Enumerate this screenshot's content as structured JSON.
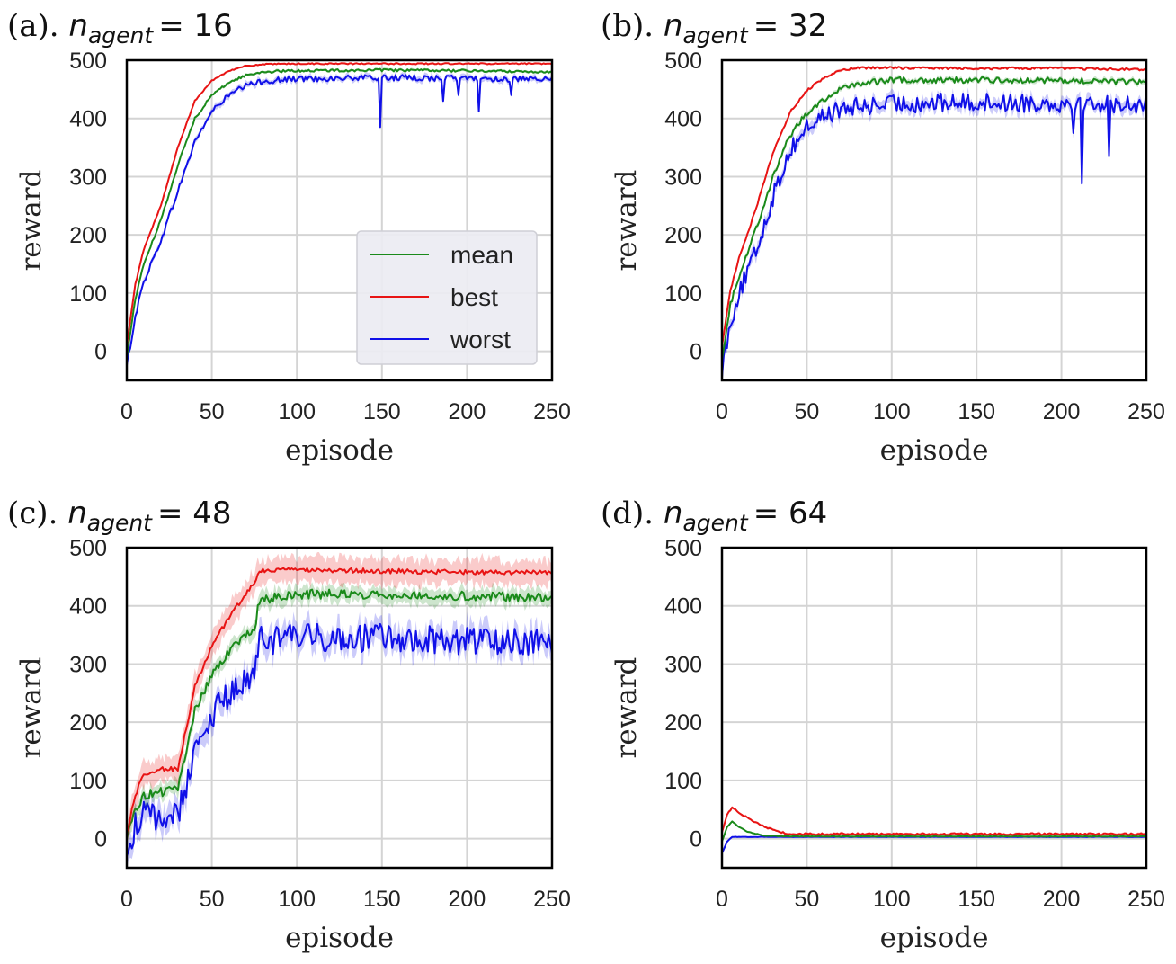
{
  "figure": {
    "colors": {
      "mean": "#1a8a1a",
      "best": "#e81414",
      "worst": "#1010e8",
      "grid": "#d4d4d4",
      "frame": "#000000"
    }
  },
  "chart_data": [
    {
      "type": "line",
      "panel_label": "(a).",
      "title_var": "n",
      "title_sub": "agent",
      "title_eq": "= 16",
      "xlabel": "episode",
      "ylabel": "reward",
      "xlim": [
        0,
        250
      ],
      "ylim": [
        -50,
        500
      ],
      "xticks": [
        0,
        50,
        100,
        150,
        200,
        250
      ],
      "yticks": [
        0,
        100,
        200,
        300,
        400,
        500
      ],
      "grid": true,
      "legend": {
        "placement": "center-right",
        "entries": [
          "mean",
          "best",
          "worst"
        ]
      },
      "series": [
        {
          "name": "mean",
          "points": [
            [
              0,
              -10
            ],
            [
              5,
              90
            ],
            [
              10,
              150
            ],
            [
              20,
              225
            ],
            [
              30,
              320
            ],
            [
              40,
              400
            ],
            [
              50,
              440
            ],
            [
              60,
              462
            ],
            [
              70,
              474
            ],
            [
              80,
              480
            ],
            [
              100,
              482
            ],
            [
              150,
              483
            ],
            [
              200,
              482
            ],
            [
              250,
              480
            ]
          ],
          "noise": 2,
          "band": 3
        },
        {
          "name": "best",
          "points": [
            [
              0,
              10
            ],
            [
              5,
              115
            ],
            [
              10,
              175
            ],
            [
              20,
              250
            ],
            [
              30,
              350
            ],
            [
              40,
              430
            ],
            [
              50,
              465
            ],
            [
              60,
              482
            ],
            [
              70,
              490
            ],
            [
              80,
              493
            ],
            [
              100,
              494
            ],
            [
              150,
              494
            ],
            [
              200,
              494
            ],
            [
              250,
              494
            ]
          ],
          "noise": 1,
          "band": 2
        },
        {
          "name": "worst",
          "points": [
            [
              0,
              -25
            ],
            [
              5,
              60
            ],
            [
              10,
              120
            ],
            [
              20,
              190
            ],
            [
              30,
              275
            ],
            [
              40,
              360
            ],
            [
              50,
              412
            ],
            [
              60,
              440
            ],
            [
              70,
              456
            ],
            [
              80,
              464
            ],
            [
              100,
              468
            ],
            [
              150,
              470
            ],
            [
              200,
              469
            ],
            [
              250,
              466
            ]
          ],
          "noise": 5,
          "band": 7,
          "dips": [
            [
              149,
              385
            ],
            [
              186,
              430
            ],
            [
              195,
              440
            ],
            [
              207,
              412
            ],
            [
              226,
              440
            ]
          ]
        }
      ]
    },
    {
      "type": "line",
      "panel_label": "(b).",
      "title_var": "n",
      "title_sub": "agent",
      "title_eq": "= 32",
      "xlabel": "episode",
      "ylabel": "reward",
      "xlim": [
        0,
        250
      ],
      "ylim": [
        -50,
        500
      ],
      "xticks": [
        0,
        50,
        100,
        150,
        200,
        250
      ],
      "yticks": [
        0,
        100,
        200,
        300,
        400,
        500
      ],
      "grid": true,
      "series": [
        {
          "name": "mean",
          "points": [
            [
              0,
              -10
            ],
            [
              5,
              80
            ],
            [
              10,
              130
            ],
            [
              20,
              210
            ],
            [
              30,
              300
            ],
            [
              40,
              370
            ],
            [
              50,
              410
            ],
            [
              60,
              433
            ],
            [
              70,
              450
            ],
            [
              80,
              460
            ],
            [
              100,
              466
            ],
            [
              150,
              466
            ],
            [
              200,
              465
            ],
            [
              250,
              462
            ]
          ],
          "noise": 5,
          "band": 6
        },
        {
          "name": "best",
          "points": [
            [
              0,
              10
            ],
            [
              5,
              105
            ],
            [
              10,
              160
            ],
            [
              20,
              245
            ],
            [
              30,
              340
            ],
            [
              40,
              410
            ],
            [
              50,
              448
            ],
            [
              60,
              470
            ],
            [
              70,
              482
            ],
            [
              80,
              487
            ],
            [
              100,
              487
            ],
            [
              150,
              486
            ],
            [
              200,
              486
            ],
            [
              250,
              484
            ]
          ],
          "noise": 2,
          "band": 3
        },
        {
          "name": "worst",
          "points": [
            [
              0,
              -30
            ],
            [
              5,
              50
            ],
            [
              10,
              100
            ],
            [
              20,
              170
            ],
            [
              30,
              265
            ],
            [
              40,
              345
            ],
            [
              50,
              385
            ],
            [
              60,
              405
            ],
            [
              70,
              415
            ],
            [
              80,
              420
            ],
            [
              100,
              425
            ],
            [
              150,
              428
            ],
            [
              200,
              426
            ],
            [
              250,
              425
            ]
          ],
          "noise": 16,
          "band": 14,
          "dips": [
            [
              212,
              288
            ],
            [
              207,
              375
            ],
            [
              228,
              335
            ]
          ]
        }
      ]
    },
    {
      "type": "line",
      "panel_label": "(c).",
      "title_var": "n",
      "title_sub": "agent",
      "title_eq": "= 48",
      "xlabel": "episode",
      "ylabel": "reward",
      "xlim": [
        0,
        250
      ],
      "ylim": [
        -50,
        500
      ],
      "xticks": [
        0,
        50,
        100,
        150,
        200,
        250
      ],
      "yticks": [
        0,
        100,
        200,
        300,
        400,
        500
      ],
      "grid": true,
      "series": [
        {
          "name": "mean",
          "points": [
            [
              0,
              0
            ],
            [
              5,
              50
            ],
            [
              10,
              75
            ],
            [
              20,
              80
            ],
            [
              30,
              85
            ],
            [
              40,
              220
            ],
            [
              50,
              280
            ],
            [
              60,
              320
            ],
            [
              70,
              350
            ],
            [
              75,
              360
            ],
            [
              78,
              410
            ],
            [
              100,
              420
            ],
            [
              150,
              420
            ],
            [
              200,
              417
            ],
            [
              250,
              415
            ]
          ],
          "noise": 8,
          "band": 18
        },
        {
          "name": "best",
          "points": [
            [
              0,
              10
            ],
            [
              5,
              75
            ],
            [
              10,
              110
            ],
            [
              20,
              120
            ],
            [
              30,
              120
            ],
            [
              40,
              260
            ],
            [
              50,
              330
            ],
            [
              60,
              380
            ],
            [
              70,
              420
            ],
            [
              75,
              440
            ],
            [
              78,
              460
            ],
            [
              100,
              462
            ],
            [
              150,
              460
            ],
            [
              200,
              458
            ],
            [
              250,
              457
            ]
          ],
          "noise": 4,
          "band": 30
        },
        {
          "name": "worst",
          "points": [
            [
              0,
              -25
            ],
            [
              5,
              20
            ],
            [
              10,
              40
            ],
            [
              20,
              35
            ],
            [
              30,
              40
            ],
            [
              40,
              150
            ],
            [
              50,
              210
            ],
            [
              60,
              250
            ],
            [
              70,
              270
            ],
            [
              75,
              280
            ],
            [
              78,
              340
            ],
            [
              100,
              345
            ],
            [
              150,
              345
            ],
            [
              200,
              340
            ],
            [
              250,
              340
            ]
          ],
          "noise": 25,
          "band": 28
        }
      ]
    },
    {
      "type": "line",
      "panel_label": "(d).",
      "title_var": "n",
      "title_sub": "agent",
      "title_eq": "= 64",
      "xlabel": "episode",
      "ylabel": "reward",
      "xlim": [
        0,
        250
      ],
      "ylim": [
        -50,
        500
      ],
      "xticks": [
        0,
        50,
        100,
        150,
        200,
        250
      ],
      "yticks": [
        0,
        100,
        200,
        300,
        400,
        500
      ],
      "grid": true,
      "series": [
        {
          "name": "mean",
          "points": [
            [
              0,
              -5
            ],
            [
              3,
              20
            ],
            [
              6,
              30
            ],
            [
              10,
              20
            ],
            [
              15,
              12
            ],
            [
              25,
              5
            ],
            [
              40,
              4
            ],
            [
              100,
              4
            ],
            [
              150,
              4
            ],
            [
              200,
              4
            ],
            [
              250,
              4
            ]
          ],
          "noise": 0.5,
          "band": 2
        },
        {
          "name": "best",
          "points": [
            [
              0,
              10
            ],
            [
              3,
              40
            ],
            [
              6,
              55
            ],
            [
              10,
              45
            ],
            [
              20,
              28
            ],
            [
              30,
              15
            ],
            [
              40,
              8
            ],
            [
              100,
              8
            ],
            [
              150,
              8
            ],
            [
              200,
              8
            ],
            [
              250,
              8
            ]
          ],
          "noise": 1.5,
          "band": 3
        },
        {
          "name": "worst",
          "points": [
            [
              0,
              -25
            ],
            [
              3,
              -5
            ],
            [
              6,
              3
            ],
            [
              10,
              3
            ],
            [
              40,
              3
            ],
            [
              100,
              3
            ],
            [
              150,
              3
            ],
            [
              200,
              3
            ],
            [
              250,
              3
            ]
          ],
          "noise": 0.3,
          "band": 1
        }
      ]
    }
  ]
}
